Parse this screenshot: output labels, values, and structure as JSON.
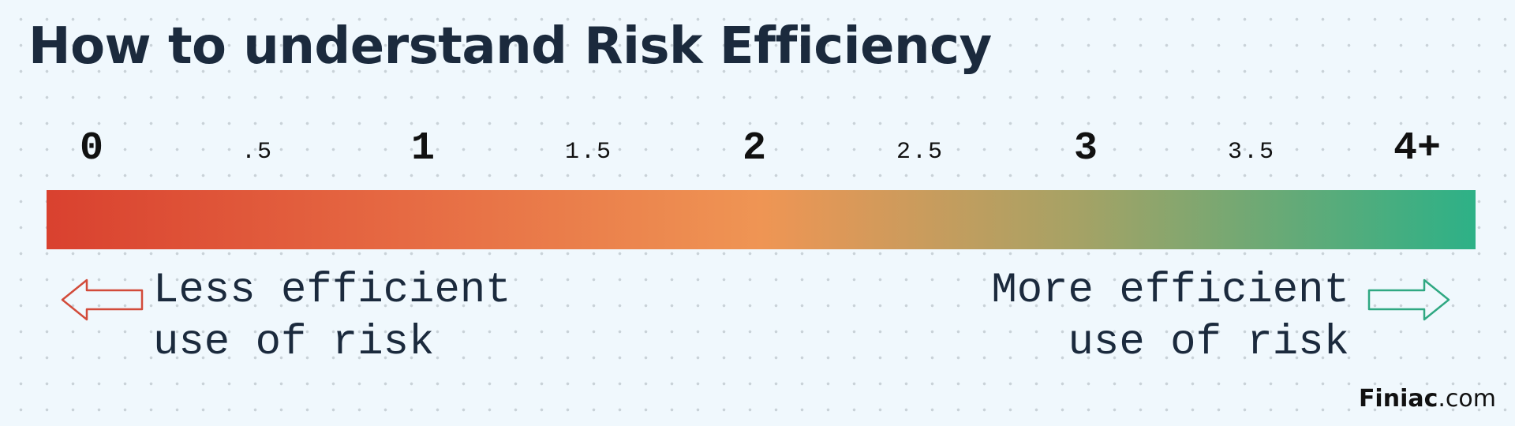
{
  "header": {
    "title": "How to understand Risk Efficiency"
  },
  "scale": {
    "ticks": [
      "0",
      ".5",
      "1",
      "1.5",
      "2",
      "2.5",
      "3",
      "3.5",
      "4+"
    ]
  },
  "captions": {
    "left": {
      "lines": [
        "Less efficient",
        "use of risk"
      ]
    },
    "right": {
      "lines": [
        "More efficient",
        "use of risk"
      ]
    }
  },
  "brand": {
    "name": "Finiac",
    "suffix": ".com"
  }
}
